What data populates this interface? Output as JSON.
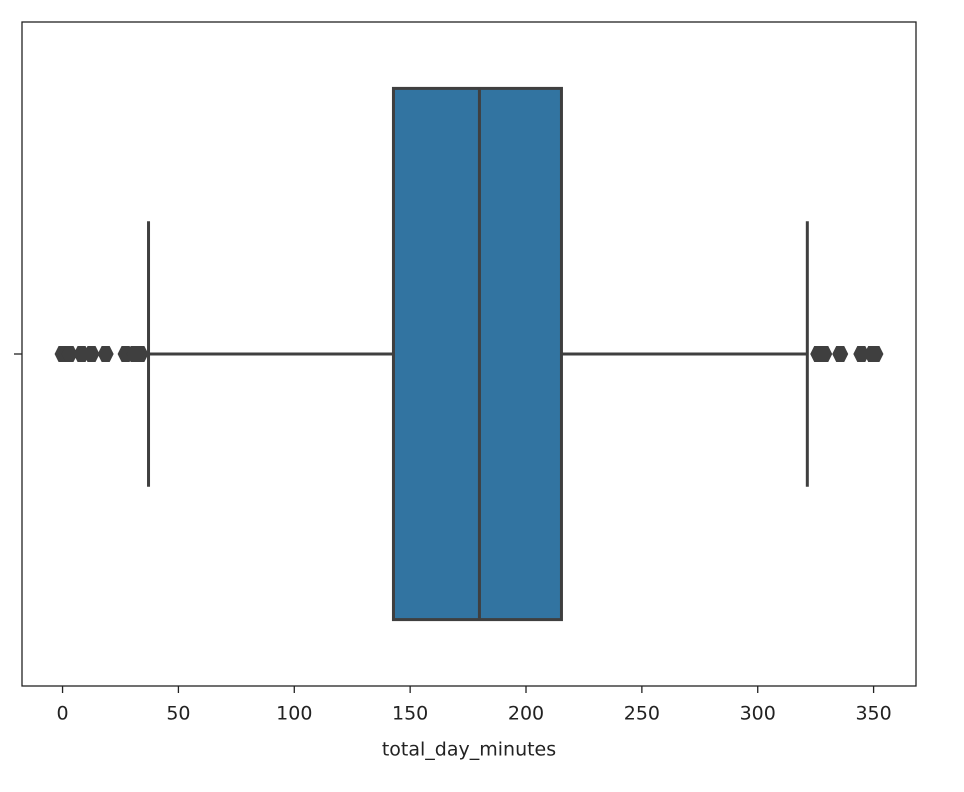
{
  "chart_data": {
    "type": "box",
    "xlabel": "total_day_minutes",
    "categories": [
      null
    ],
    "boxes": [
      {
        "whislo": 37.1,
        "q1": 142.8,
        "med": 179.9,
        "q3": 215.3,
        "whishi": 321.4,
        "fliers": [
          0,
          3,
          8.2,
          12.5,
          18.6,
          27.2,
          31.1,
          33.6,
          326.1,
          328.7,
          335.6,
          344.7,
          349.4,
          350.8
        ]
      }
    ],
    "color": "#3274a1",
    "line_color": "#3f3f3f",
    "xlim": [
      -17.5,
      368.3
    ],
    "xticks": [
      0,
      50,
      100,
      150,
      200,
      250,
      300,
      350
    ]
  }
}
